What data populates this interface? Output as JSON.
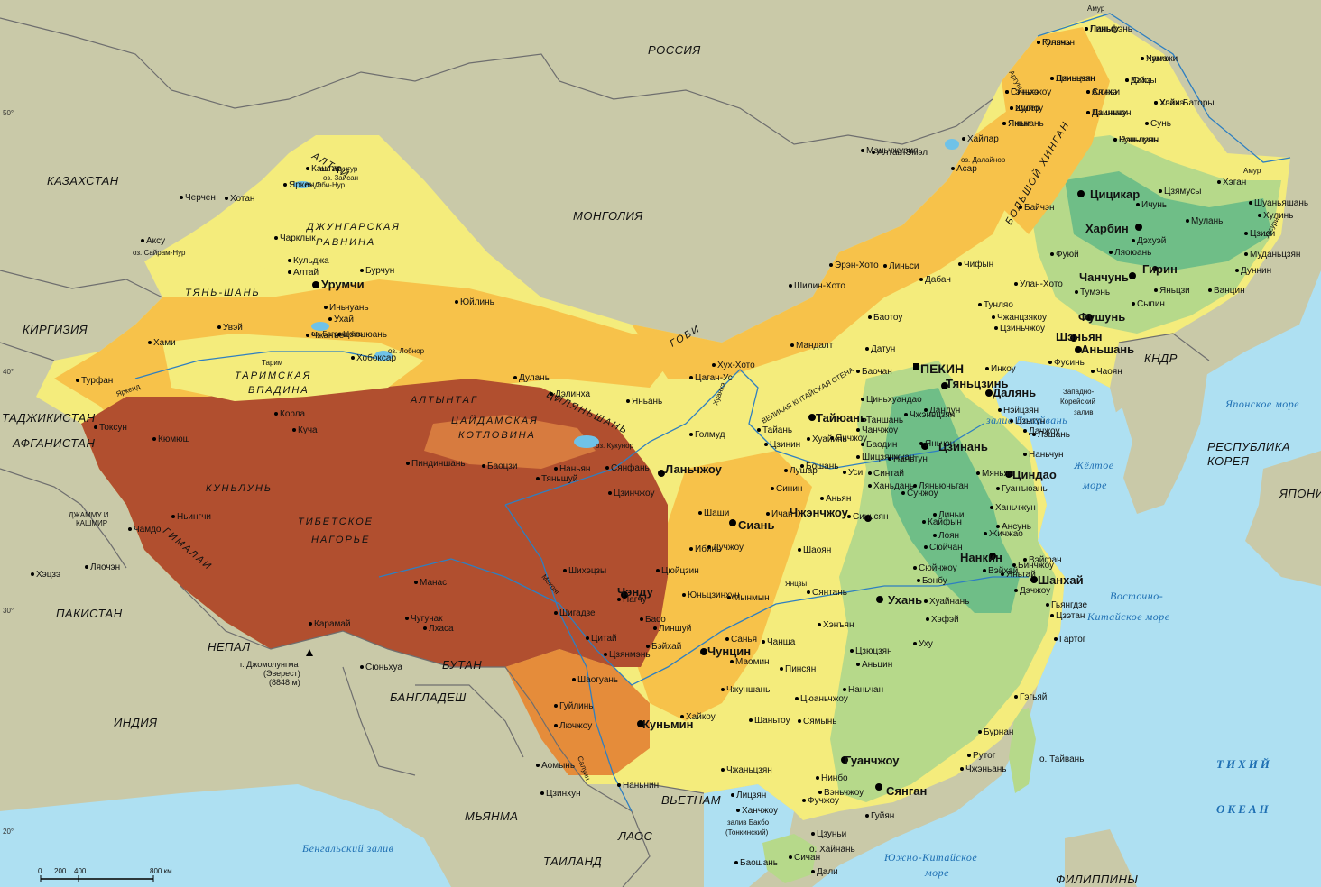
{
  "countries": [
    "РОССИЯ",
    "МОНГОЛИЯ",
    "КАЗАХСТАН",
    "КИРГИЗИЯ",
    "ТАДЖИКИСТАН",
    "АФГАНИСТАН",
    "ПАКИСТАН",
    "ИНДИЯ",
    "НЕПАЛ",
    "БУТАН",
    "БАНГЛАДЕШ",
    "МЬЯНМА",
    "ЛАОС",
    "ТАИЛАНД",
    "ВЬЕТНАМ",
    "ФИЛИППИНЫ",
    "КНДР",
    "РЕСПУБЛИКА",
    "КОРЕЯ",
    "ЯПОНИЯ",
    "ДЖАММУ И",
    "КАШМИР"
  ],
  "regions": [
    "ДЖУНГАРСКАЯ",
    "РАВНИНА",
    "ТЯНЬ-ШАНЬ",
    "ТАРИМСКАЯ",
    "ВПАДИНА",
    "АЛТЫНТАГ",
    "ЦАЙДАМСКАЯ",
    "КОТЛОВИНА",
    "КУНЬЛУНЬ",
    "ТИБЕТСКОЕ",
    "НАГОРЬЕ",
    "ГИМАЛАИ",
    "ЦИЛЯНЬШАНЬ",
    "АЛТАЙ",
    "БОЛЬШОЙ ХИНГАН",
    "ГОБИ",
    "ВЕЛИКАЯ КИТАЙСКАЯ СТЕНА"
  ],
  "waters": [
    "Японское море",
    "Жёлтое",
    "море",
    "Восточно-",
    "Китайское море",
    "Бенгальский залив",
    "Южно-Китайское",
    "море",
    "залив Бохайвань",
    "Западно-",
    "Корейский",
    "залив",
    "залив Бакбо",
    "(Тонкинский)",
    "оз. Зайсан",
    "Амур",
    "Уссури",
    "Аргунь",
    "оз. Далайнор",
    "оз. Эби-Нур",
    "оз. Сайрам-Нур",
    "оз. Баграшкёль",
    "оз. Лобнор",
    "оз. Кукунор",
    "Тарим",
    "Яркенд",
    "Хуанхэ",
    "Янцзы",
    "Меконг",
    "Салуин",
    "оз. Улунгур"
  ],
  "oceans": [
    "ТИХИЙ",
    "ОКЕАН"
  ],
  "capital": "ПЕКИН",
  "major_cities": [
    "Харбин",
    "Чанчунь",
    "Гирин",
    "Цицикар",
    "Шэньян",
    "Аньшань",
    "Фушунь",
    "Далянь",
    "Тяньцзинь",
    "Цзинань",
    "Циндао",
    "Нанкин",
    "Шанхай",
    "Ухань",
    "Чэнду",
    "Куньмин",
    "Гуанчжоу",
    "Сянган",
    "Сиань",
    "Чжэнчжоу",
    "Ланьчжоу",
    "Урумчи",
    "Тайюань",
    "Чунцин"
  ],
  "cities": [
    "Гулянь",
    "Паньгу",
    "Хума",
    "Линьцзян",
    "Алихэ",
    "Дахэ",
    "Гэньхэ",
    "Худер",
    "Якши",
    "Дашишу",
    "Нэньцзян",
    "Хэйхэ",
    "Сунь",
    "Маньчжурия",
    "Хайлар",
    "Алтан-Эмэл",
    "Асар",
    "Цзямусы",
    "Хэган",
    "Ичунь",
    "Шуаньяшань",
    "Хулинь",
    "Мулань",
    "Цзиси",
    "Муданьцзян",
    "Дуннин",
    "Ванцин",
    "Яньцзи",
    "Тумэнь",
    "Сыпин",
    "Ляоюань",
    "Дэхуэй",
    "Фуюй",
    "Байчэн",
    "Улан-Хото",
    "Тунляо",
    "Чифын",
    "Дабан",
    "Линьси",
    "Шилин-Хото",
    "Эрэн-Хото",
    "Мандалт",
    "Хух-Хото",
    "Баотоу",
    "Баочан",
    "Датун",
    "Чжанцзякоу",
    "Цзиньчжоу",
    "Фусинь",
    "Чаоян",
    "Инкоу",
    "Дандун",
    "Циньхуандао",
    "Таншань",
    "Баодин",
    "Шицзячжуан",
    "Синтай",
    "Ханьдань",
    "Аньян",
    "Синьсян",
    "Кайфын",
    "Лоян",
    "Сюйчан",
    "Сюйчжоу",
    "Бэнбу",
    "Хуайнань",
    "Хэфэй",
    "Уху",
    "Аньцин",
    "Цзюцзян",
    "Наньчан",
    "Пинсян",
    "Чанша",
    "Сянтань",
    "Хэнъян",
    "Шаоян",
    "Ичан",
    "Шаши",
    "Цзинчжоу",
    "Сянфань",
    "Наньян",
    "Пиндиншань",
    "Баоцзи",
    "Тяньшуй",
    "Синин",
    "Лушар",
    "Голмуд",
    "Цаган-Ус",
    "Дулань",
    "Дэлинха",
    "Яньань",
    "Юйлинь",
    "Иньчуань",
    "Ухай",
    "Цзюцюань",
    "Чжанъе",
    "Увэй",
    "Хами",
    "Турфан",
    "Токсун",
    "Кюмюш",
    "Корла",
    "Куча",
    "Аксу",
    "Кашгар",
    "Яркенд",
    "Хотан",
    "Черчен",
    "Чарклык",
    "Кульджа",
    "Алтай",
    "Бурчун",
    "Хобоксар",
    "Чугучак",
    "Карамай",
    "Манас",
    "Шихэцзы",
    "Цитай",
    "Сюньхуа",
    "Лхаса",
    "Шигадзе",
    "Нагчу",
    "Чамдо",
    "Ньингчи",
    "Гьянгдзе",
    "Цзэтан",
    "Гартог",
    "Гэгьяй",
    "Рутог",
    "Бурнан",
    "Чжэньань",
    "Ханчжоу",
    "Нинбо",
    "Вэньчжоу",
    "Фучжоу",
    "Сямынь",
    "Цюаньчжоу",
    "Шаньтоу",
    "Чжаньцзян",
    "Чжуншань",
    "Маомин",
    "Цзянмэнь",
    "Шаогуань",
    "Гуйлинь",
    "Лючжоу",
    "Наньнин",
    "Гуйян",
    "Цзуньи",
    "Сичан",
    "Дали",
    "Баошань",
    "Лицзян",
    "Цзинхун",
    "Аомынь",
    "Хайкоу",
    "Санья",
    "Линшуй",
    "Басо",
    "Бэйхай",
    "Юньцзинхун",
    "Мынмын",
    "Цюйцзин",
    "Ибинь",
    "Лучжоу",
    "Нэйцзян",
    "Цзыгун",
    "Лэшань",
    "Дачжоу",
    "Наньчун",
    "Мяньян",
    "Гуанъюань",
    "Ханьчжун",
    "Ансунь",
    "Дэчжоу",
    "Бинчжоу",
    "Вэйфан",
    "Яньтай",
    "Вэйхай",
    "Жичжао",
    "Линьи",
    "Ляньюньган",
    "Яньчэн",
    "Наньтун",
    "Сучжоу",
    "Уси",
    "Чанчжоу",
    "Чжэньцзян",
    "Янчжоу",
    "Хуайинь",
    "Бошань",
    "Цзинин",
    "Тайань",
    "Ляочэн",
    "Хэцзэ",
    "Юньчэн",
    "Линьфэнь",
    "Чанчжи",
    "Цзиньчэн",
    "Сюньи",
    "Юйцы",
    "Синьчжоу",
    "Шилоу",
    "Яньнань",
    "Цзиньчэн",
    "Куньлунь",
    "Улан-Баторы"
  ],
  "peak": {
    "name": "г. Джомолунгма",
    "alt_name": "(Эверест)",
    "height": "(8848 м)"
  },
  "scale": {
    "labels": [
      "0",
      "200",
      "400",
      "800 км"
    ]
  },
  "latitudes": [
    "50°",
    "40°",
    "30°",
    "20°"
  ],
  "islands": [
    "о. Тайвань",
    "о. Хайнань"
  ],
  "colors": {
    "ocean": "#aee0f2",
    "foreign_land": "#c9c9a8",
    "lowland": "#6fbe87",
    "low_plain": "#b6d98a",
    "hill": "#f4ec7c",
    "upland": "#f7c24a",
    "high": "#e58c3a",
    "mountain": "#c0562f",
    "plateau": "#b14f2f",
    "border": "#6e6e6e",
    "river": "#2e7fc1"
  }
}
